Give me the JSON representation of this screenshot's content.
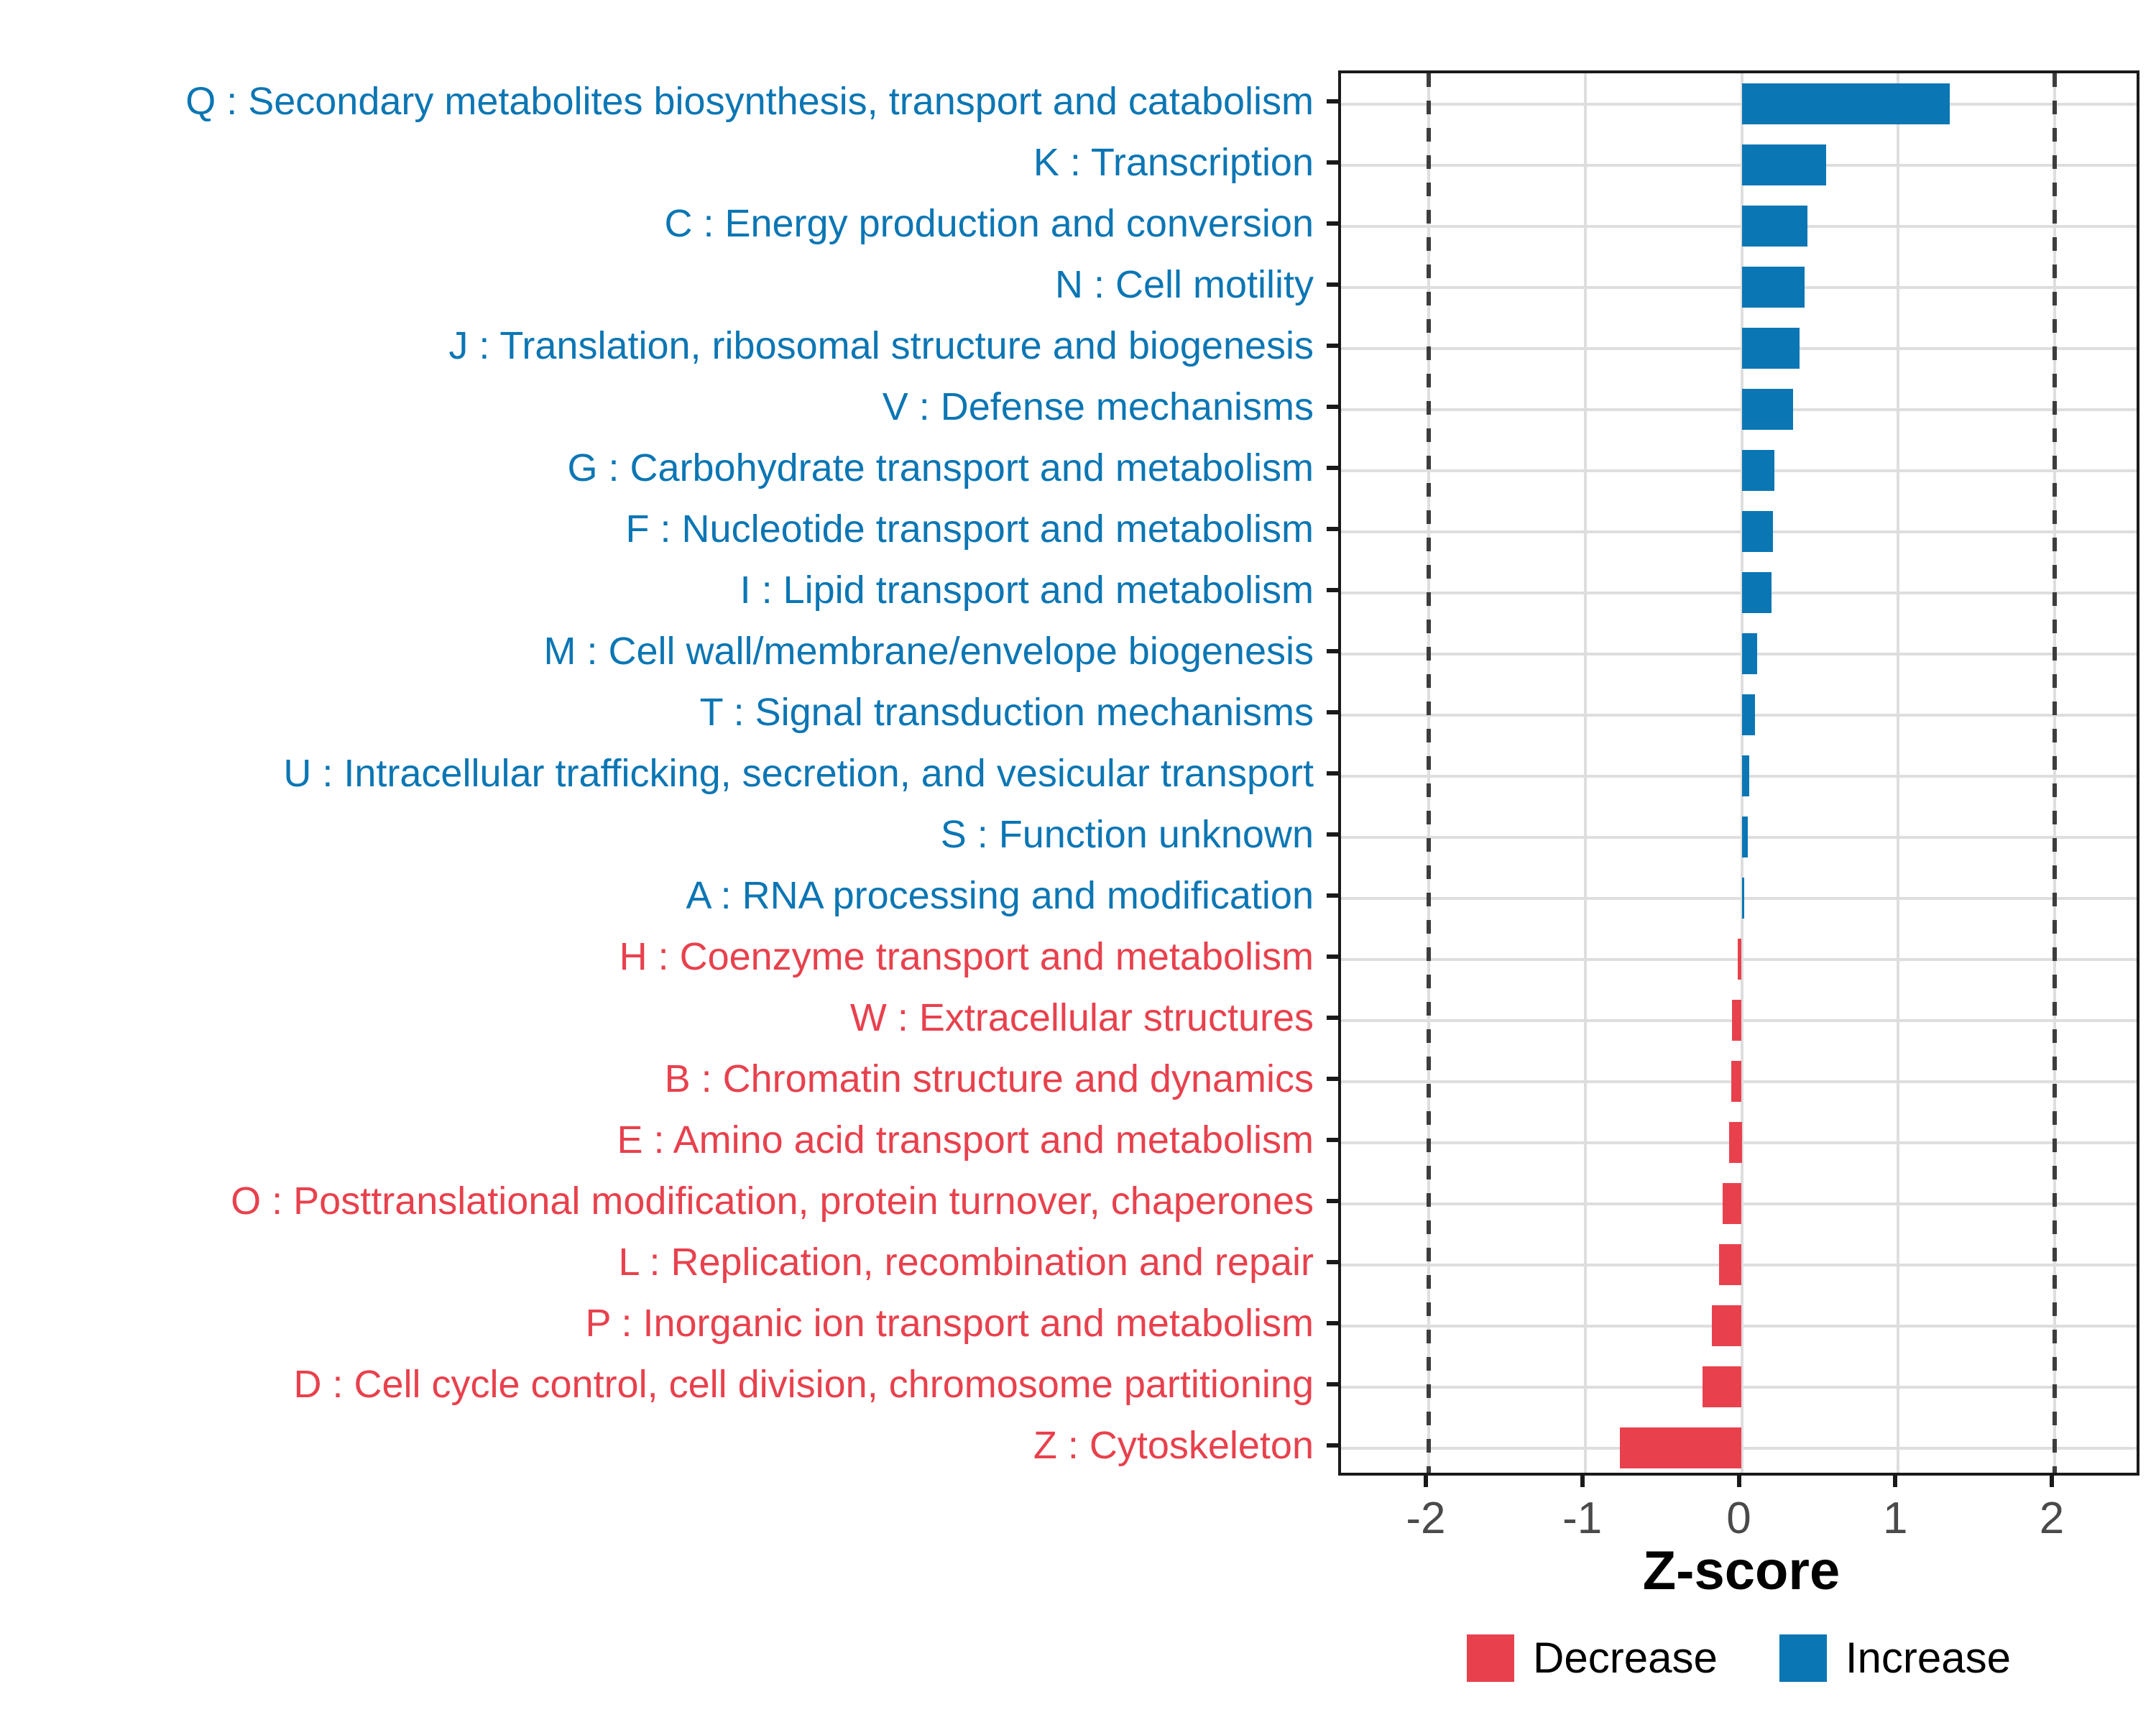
{
  "chart_data": {
    "type": "bar",
    "orientation": "horizontal",
    "xlabel": "Z-score",
    "xlim": [
      -2.56,
      2.56
    ],
    "x_ticks": [
      -2,
      -1,
      0,
      1,
      2
    ],
    "reference_lines_dashed": [
      -2,
      2
    ],
    "grid": true,
    "legend_position": "bottom",
    "categories": [
      "Q : Secondary metabolites biosynthesis, transport and catabolism",
      "K : Transcription",
      "C : Energy production and conversion",
      "N : Cell motility",
      "J : Translation, ribosomal structure and biogenesis",
      "V : Defense mechanisms",
      "G : Carbohydrate transport and metabolism",
      "F : Nucleotide transport and metabolism",
      "I : Lipid transport and metabolism",
      "M : Cell wall/membrane/envelope biogenesis",
      "T : Signal transduction mechanisms",
      "U : Intracellular trafficking, secretion, and vesicular transport",
      "S : Function unknown",
      "A : RNA processing and modification",
      "H : Coenzyme transport and metabolism",
      "W : Extracellular structures",
      "B : Chromatin structure and dynamics",
      "E : Amino acid transport and metabolism",
      "O : Posttranslational modification, protein turnover, chaperones",
      "L : Replication, recombination and repair",
      "P : Inorganic ion transport and metabolism",
      "D : Cell cycle control, cell division, chromosome partitioning",
      "Z : Cytoskeleton"
    ],
    "values": [
      1.33,
      0.54,
      0.42,
      0.4,
      0.37,
      0.33,
      0.21,
      0.2,
      0.19,
      0.1,
      0.085,
      0.05,
      0.04,
      0.015,
      -0.025,
      -0.063,
      -0.065,
      -0.08,
      -0.12,
      -0.145,
      -0.19,
      -0.25,
      -0.78
    ],
    "groups": [
      "increase",
      "increase",
      "increase",
      "increase",
      "increase",
      "increase",
      "increase",
      "increase",
      "increase",
      "increase",
      "increase",
      "increase",
      "increase",
      "increase",
      "decrease",
      "decrease",
      "decrease",
      "decrease",
      "decrease",
      "decrease",
      "decrease",
      "decrease",
      "decrease"
    ],
    "legend": [
      {
        "label": "Decrease",
        "group": "decrease",
        "color": "#E8414D"
      },
      {
        "label": "Increase",
        "group": "increase",
        "color": "#0B76B4"
      }
    ]
  },
  "colors": {
    "increase": "#0B76B4",
    "decrease": "#E8414D",
    "grid": "#DEDEDE",
    "reference_line": "#3D3D3D",
    "axis_text": "#4A4A4A",
    "panel_border": "#1A1A1A"
  }
}
